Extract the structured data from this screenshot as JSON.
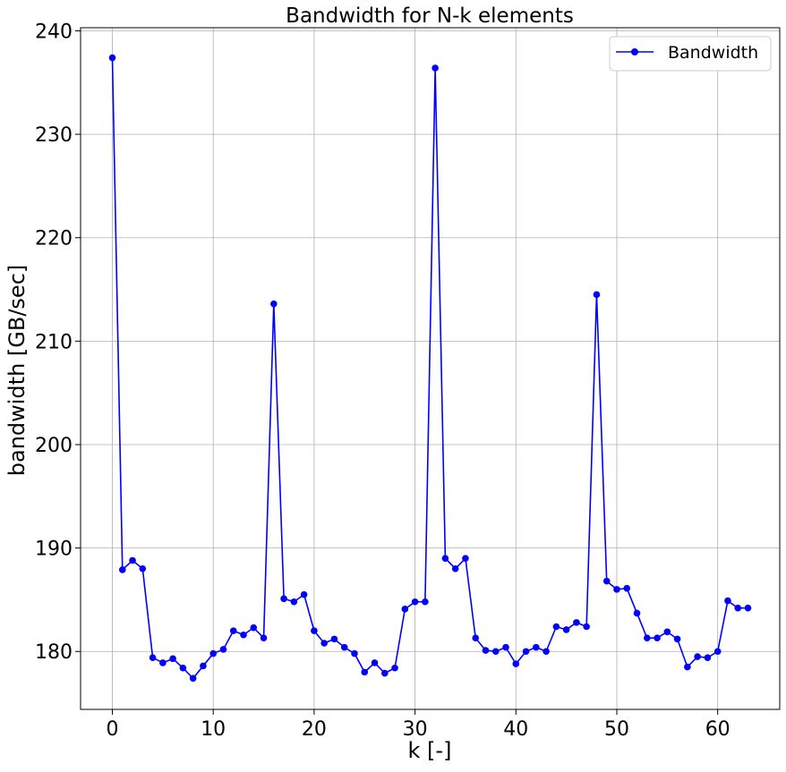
{
  "chart_data": {
    "type": "line",
    "title": "Bandwidth for N-k elements",
    "xlabel": "k [-]",
    "ylabel": "bandwidth [GB/sec]",
    "xlim": [
      -3.15,
      66.15
    ],
    "ylim": [
      174.4,
      240.3
    ],
    "xticks": [
      0,
      10,
      20,
      30,
      40,
      50,
      60
    ],
    "yticks": [
      180,
      190,
      200,
      210,
      220,
      230,
      240
    ],
    "grid": true,
    "legend_position": "top-right",
    "line_color": "#0000ff",
    "marker": "circle",
    "series": [
      {
        "name": "Bandwidth",
        "x": [
          0,
          1,
          2,
          3,
          4,
          5,
          6,
          7,
          8,
          9,
          10,
          11,
          12,
          13,
          14,
          15,
          16,
          17,
          18,
          19,
          20,
          21,
          22,
          23,
          24,
          25,
          26,
          27,
          28,
          29,
          30,
          31,
          32,
          33,
          34,
          35,
          36,
          37,
          38,
          39,
          40,
          41,
          42,
          43,
          44,
          45,
          46,
          47,
          48,
          49,
          50,
          51,
          52,
          53,
          54,
          55,
          56,
          57,
          58,
          59,
          60,
          61,
          62,
          63
        ],
        "values": [
          237.4,
          187.9,
          188.8,
          188.0,
          179.4,
          178.9,
          179.3,
          178.4,
          177.4,
          178.6,
          179.8,
          180.2,
          182.0,
          181.6,
          182.3,
          181.3,
          213.6,
          185.1,
          184.8,
          185.5,
          182.0,
          180.8,
          181.2,
          180.4,
          179.8,
          178.0,
          178.9,
          177.9,
          178.4,
          184.1,
          184.8,
          184.8,
          236.4,
          189.0,
          188.0,
          189.0,
          181.3,
          180.1,
          180.0,
          180.4,
          178.8,
          180.0,
          180.4,
          180.0,
          182.4,
          182.1,
          182.8,
          182.4,
          214.5,
          186.8,
          186.0,
          186.1,
          183.7,
          181.3,
          181.3,
          181.9,
          181.2,
          178.5,
          179.5,
          179.4,
          180.0,
          184.9,
          184.2,
          184.2
        ]
      }
    ]
  }
}
